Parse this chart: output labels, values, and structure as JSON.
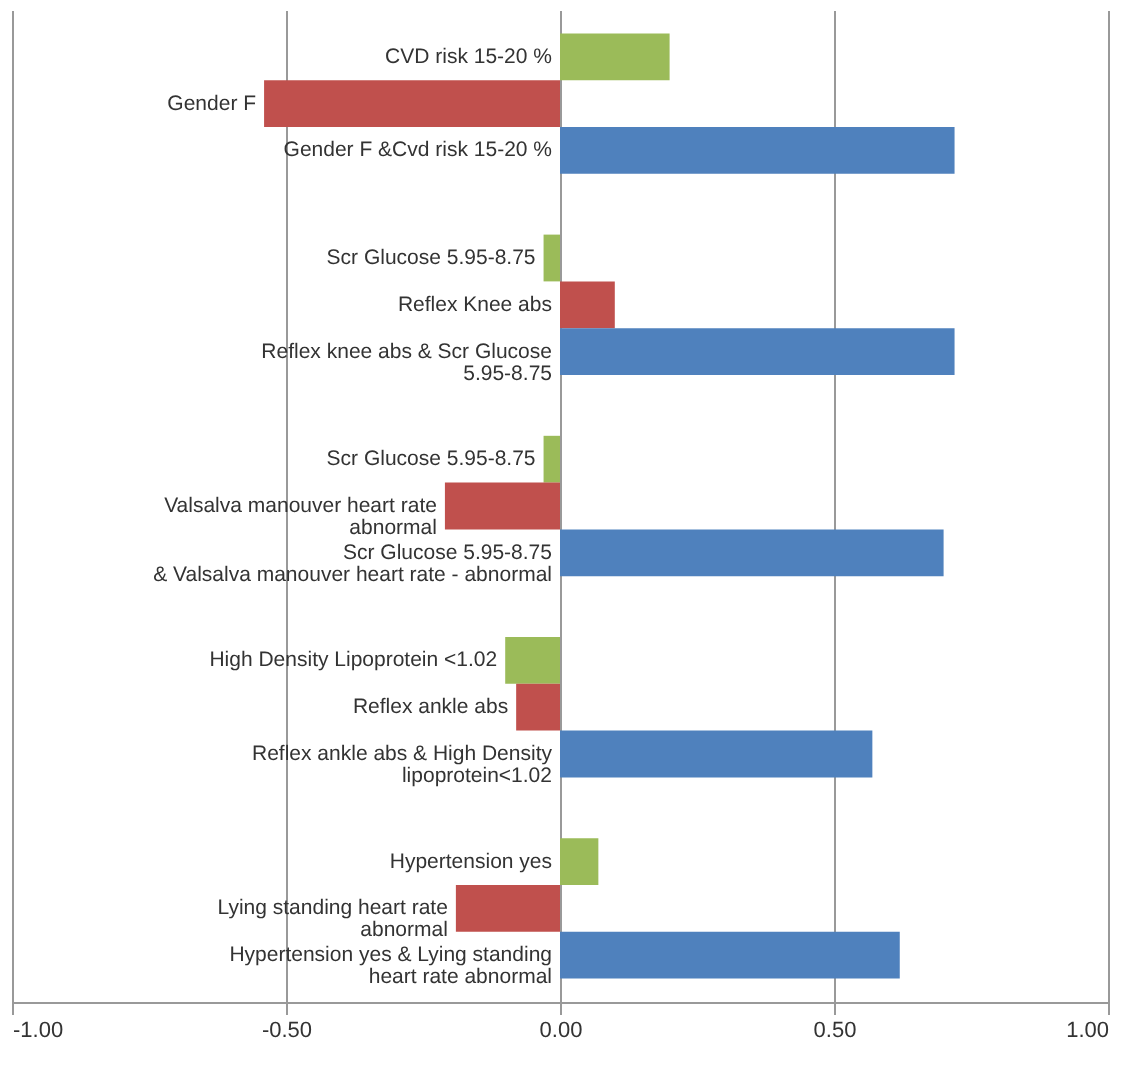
{
  "chart_data": {
    "type": "bar",
    "orientation": "horizontal",
    "categories": [
      "CVD risk 15-20 %",
      "Gender F",
      "Gender F &Cvd risk 15-20 %",
      "Scr Glucose 5.95-8.75",
      "Reflex Knee abs",
      "Reflex knee abs & Scr Glucose\n5.95-8.75",
      "Scr Glucose 5.95-8.75",
      "Valsalva manouver heart rate\nabnormal",
      "Scr Glucose 5.95-8.75\n& Valsalva manouver heart rate - abnormal",
      "High Density Lipoprotein  <1.02",
      "Reflex ankle abs",
      "Reflex ankle abs & High Density\nlipoprotein<1.02",
      "Hypertension  yes",
      "Lying standing heart rate\nabnormal",
      "Hypertension  yes & Lying standing\nheart rate abnormal"
    ],
    "values": [
      0.2,
      -0.54,
      0.72,
      -0.03,
      0.1,
      0.72,
      -0.03,
      -0.21,
      0.7,
      -0.1,
      -0.08,
      0.57,
      0.07,
      -0.19,
      0.62
    ],
    "colors": [
      "#9bbb59",
      "#c0504d",
      "#4f81bd",
      "#9bbb59",
      "#c0504d",
      "#4f81bd",
      "#9bbb59",
      "#c0504d",
      "#4f81bd",
      "#9bbb59",
      "#c0504d",
      "#4f81bd",
      "#9bbb59",
      "#c0504d",
      "#4f81bd"
    ],
    "xlim": [
      -1,
      1
    ],
    "xticks": [
      {
        "value": -1,
        "label": "-1.00"
      },
      {
        "value": -0.5,
        "label": "-0.50"
      },
      {
        "value": 0,
        "label": "0.00"
      },
      {
        "value": 0.5,
        "label": "0.50"
      },
      {
        "value": 1,
        "label": "1.00"
      }
    ],
    "grid": "x"
  }
}
